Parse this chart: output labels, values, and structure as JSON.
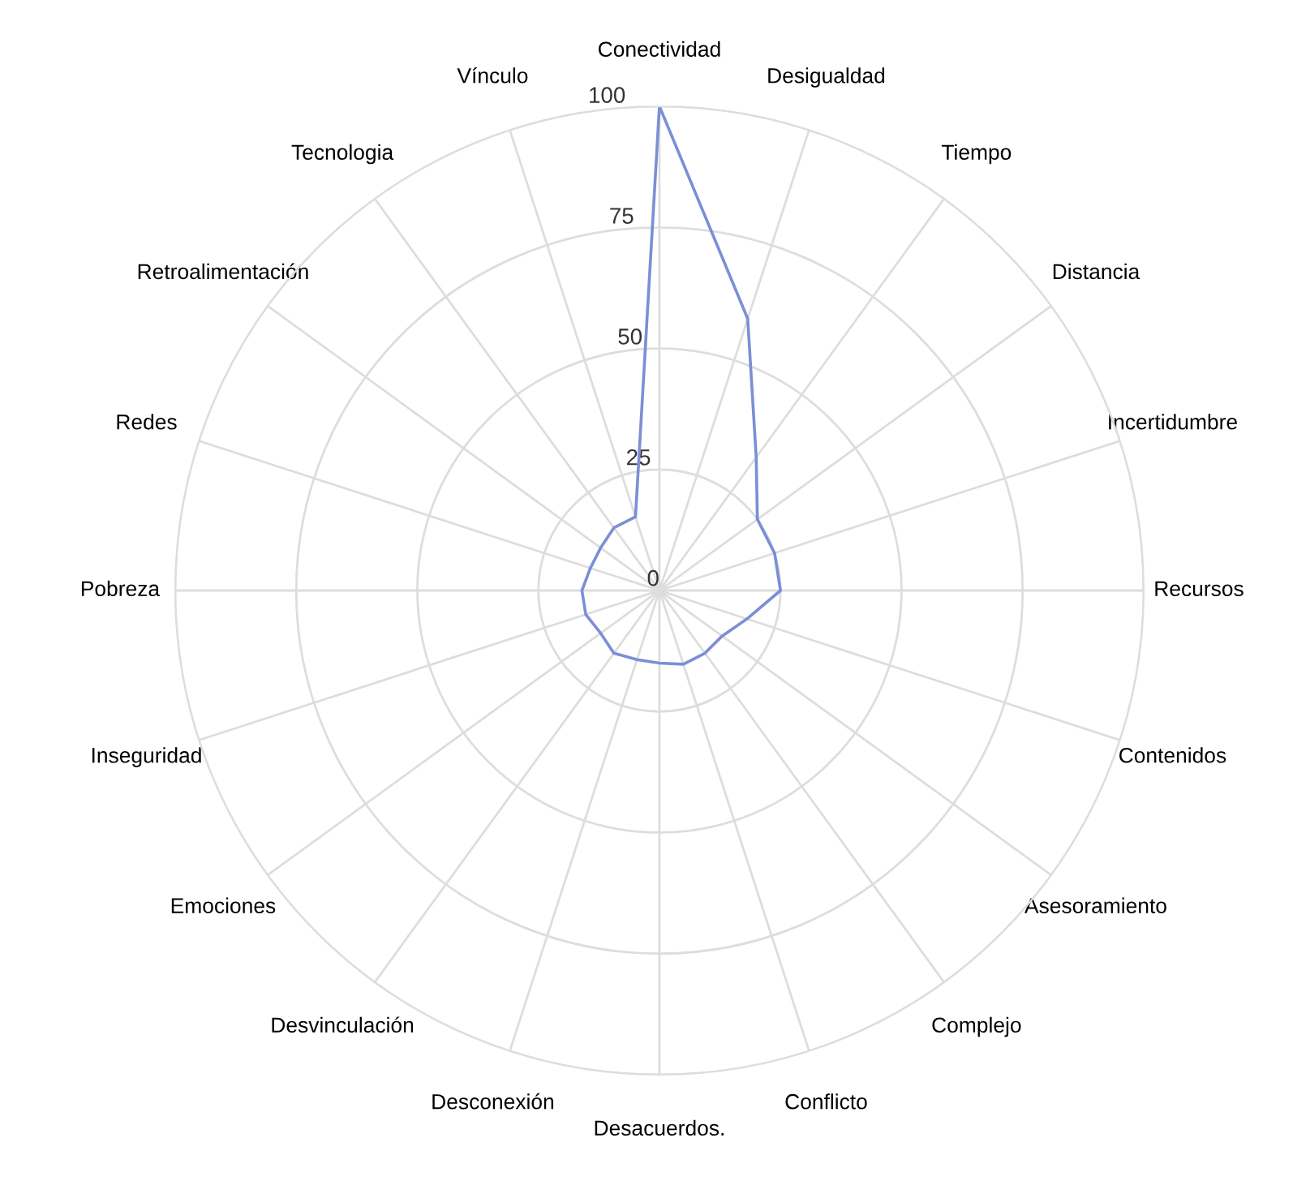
{
  "chart_data": {
    "type": "radar",
    "categories": [
      "Conectividad",
      "Desigualdad",
      "Tiempo",
      "Distancia",
      "Incertidumbre",
      "Recursos",
      "Contenidos",
      "Asesoramiento",
      "Complejo",
      "Conflicto",
      "Desacuerdos.",
      "Desconexión",
      "Desvinculación",
      "Emociones",
      "Inseguridad",
      "Pobreza",
      "Redes",
      "Retroalimentación",
      "Tecnologia",
      "Vínculo"
    ],
    "series": [
      {
        "color": "#7b8fd6",
        "values": [
          100,
          59,
          34,
          25,
          25,
          25,
          19,
          16,
          16,
          16,
          15,
          15,
          16,
          15,
          16,
          16,
          15,
          15,
          16,
          16
        ]
      }
    ],
    "ylim": [
      0,
      100
    ],
    "yticks": [
      0,
      25,
      50,
      75,
      100
    ],
    "grid": true,
    "marker": "none",
    "line_style": "solid"
  }
}
